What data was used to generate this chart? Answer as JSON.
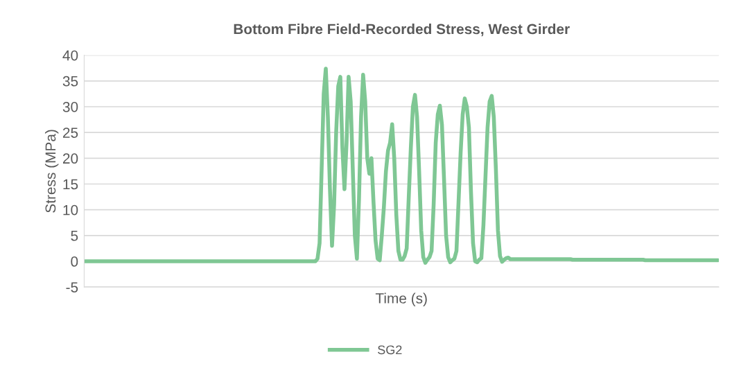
{
  "chart_data": {
    "type": "line",
    "title": "Bottom Fibre Field-Recorded Stress, West Girder",
    "xlabel": "Time (s)",
    "ylabel": "Stress (MPa)",
    "categories": [
      null,
      null,
      null,
      null,
      null,
      null,
      null,
      null,
      null,
      null,
      null,
      null,
      null,
      null,
      null,
      null,
      null,
      null,
      null,
      null,
      null,
      null,
      null,
      null,
      null,
      null,
      null,
      null,
      null,
      null,
      null,
      null,
      null,
      null,
      null,
      null,
      null,
      null,
      null,
      null,
      null,
      null,
      null,
      null,
      null,
      null,
      null,
      null,
      null,
      null,
      null,
      null,
      null,
      null,
      null,
      null,
      null,
      null,
      null,
      null,
      null,
      null,
      null,
      null,
      null,
      null,
      null,
      null,
      null,
      null,
      null,
      null,
      null,
      null,
      null,
      null,
      null,
      null,
      null,
      null,
      null,
      null,
      null,
      null,
      null,
      null,
      null,
      null,
      null,
      null,
      null,
      null,
      null,
      null,
      null,
      null,
      null,
      null,
      null,
      null,
      null,
      null,
      null,
      null,
      null,
      null,
      null,
      null,
      null,
      null,
      null,
      null,
      null,
      null,
      null,
      null,
      null,
      null,
      null,
      null,
      null,
      null,
      null,
      null,
      null,
      null,
      null,
      null,
      null,
      null,
      null,
      null,
      null,
      null,
      null,
      null,
      null,
      null,
      null,
      null,
      null,
      null,
      null,
      null,
      null,
      null,
      null,
      null,
      null,
      null,
      null,
      null,
      null,
      null,
      null,
      null,
      null,
      null,
      null,
      null,
      null,
      null,
      null,
      null,
      null,
      null,
      null,
      null,
      null,
      null,
      null,
      null,
      null,
      null,
      null,
      null,
      null,
      null,
      null,
      null,
      null,
      null,
      null,
      null,
      null,
      null,
      null,
      null,
      null,
      null,
      null,
      null,
      null,
      null,
      null,
      null,
      null,
      null,
      null,
      null,
      null,
      null,
      null,
      null,
      null,
      null,
      null,
      null,
      null,
      null,
      null,
      null,
      null,
      null,
      null,
      null,
      null,
      null,
      null,
      null,
      null,
      null,
      null,
      null,
      null,
      null,
      null,
      null,
      null,
      null,
      null,
      null,
      null,
      null,
      null,
      null,
      null,
      null,
      null,
      null,
      null,
      null,
      null,
      null,
      null,
      null,
      null,
      null,
      null,
      null,
      null,
      null,
      null,
      null,
      null,
      null,
      null,
      null,
      null,
      null,
      null,
      null,
      null,
      null,
      null,
      null,
      null,
      null,
      null,
      null,
      null,
      null,
      null,
      null,
      null,
      null,
      null,
      null,
      null,
      null,
      null,
      null,
      null,
      null,
      null,
      null,
      null,
      null,
      null,
      null,
      null,
      null,
      null,
      null,
      null,
      null,
      null,
      null,
      null,
      null,
      null,
      null,
      null,
      null,
      null,
      null
    ],
    "series": [
      {
        "name": "SG2",
        "color": "#7fc794",
        "values": [
          0,
          0,
          0,
          0,
          0,
          0,
          0,
          0,
          0,
          0,
          0,
          0,
          0,
          0,
          0,
          0,
          0,
          0,
          0,
          0,
          0,
          0,
          0,
          0,
          0,
          0,
          0,
          0,
          0,
          0,
          0,
          0,
          0,
          0,
          0,
          0,
          0,
          0,
          0,
          0,
          0,
          0,
          0,
          0,
          0,
          0,
          0,
          0,
          0,
          0,
          0,
          0,
          0,
          0,
          0,
          0,
          0,
          0,
          0,
          0,
          0,
          0,
          0,
          0,
          0,
          0,
          0,
          0,
          0,
          0,
          0,
          0,
          0,
          0,
          0,
          0,
          0,
          0,
          0,
          0,
          0,
          0,
          0,
          0,
          0,
          0,
          0,
          0,
          0,
          0,
          0,
          0,
          0,
          0,
          0,
          0,
          0,
          0,
          0,
          0,
          0,
          0,
          0,
          0,
          0,
          0,
          0,
          0,
          0,
          0,
          0,
          0,
          0.5,
          3.5,
          18,
          32.5,
          37.4,
          28,
          14,
          3,
          11,
          25,
          34,
          35.8,
          22,
          14,
          23,
          35.8,
          31,
          18,
          5,
          0.5,
          12,
          28,
          36.2,
          31,
          20,
          17,
          20,
          11.5,
          4,
          0.5,
          0.2,
          5,
          10.5,
          17.5,
          21.5,
          23,
          26.6,
          20,
          9,
          2,
          0.3,
          0.3,
          1,
          2.5,
          12.5,
          22,
          30,
          32.3,
          28,
          17.5,
          6,
          0.8,
          -0.3,
          0.3,
          0.8,
          2,
          11,
          23,
          28.5,
          30.2,
          26.5,
          16,
          5,
          0.8,
          -0.2,
          0.2,
          0.5,
          2,
          11.5,
          21,
          28.5,
          31.6,
          30,
          26,
          13.5,
          3.5,
          0,
          -0.2,
          0.3,
          0.6,
          7,
          16.5,
          26,
          31,
          32.1,
          28,
          18,
          6,
          1,
          -0.1,
          0.3,
          0.6,
          0.7,
          0.4,
          0.4,
          0.4,
          0.4,
          0.4,
          0.4,
          0.4,
          0.4,
          0.4,
          0.4,
          0.4,
          0.4,
          0.4,
          0.4,
          0.4,
          0.4,
          0.4,
          0.4,
          0.4,
          0.4,
          0.4,
          0.4,
          0.4,
          0.4,
          0.4,
          0.4,
          0.4,
          0.4,
          0.4,
          0.4,
          0.3,
          0.3,
          0.3,
          0.3,
          0.3,
          0.3,
          0.3,
          0.3,
          0.3,
          0.3,
          0.3,
          0.3,
          0.3,
          0.3,
          0.3,
          0.3,
          0.3,
          0.3,
          0.3,
          0.3,
          0.3,
          0.3,
          0.3,
          0.3,
          0.3,
          0.3,
          0.3,
          0.3,
          0.3,
          0.3,
          0.3,
          0.3,
          0.3,
          0.3,
          0.3,
          0.2,
          0.2,
          0.2,
          0.2,
          0.2,
          0.2,
          0.2,
          0.2,
          0.2,
          0.2,
          0.2,
          0.2,
          0.2,
          0.2,
          0.2,
          0.2,
          0.2,
          0.2,
          0.2,
          0.2,
          0.2,
          0.2,
          0.2,
          0.2,
          0.2,
          0.2,
          0.2,
          0.2,
          0.2,
          0.2,
          0.2,
          0.2,
          0.2,
          0.2,
          0.2,
          0.2
        ]
      }
    ],
    "ylim": [
      -5,
      40
    ],
    "yticks": [
      -5,
      0,
      5,
      10,
      15,
      20,
      25,
      30,
      35,
      40
    ],
    "grid": "y",
    "legend": "bottom",
    "tick_labels": "y",
    "marker": "none",
    "line_style": "solid"
  }
}
